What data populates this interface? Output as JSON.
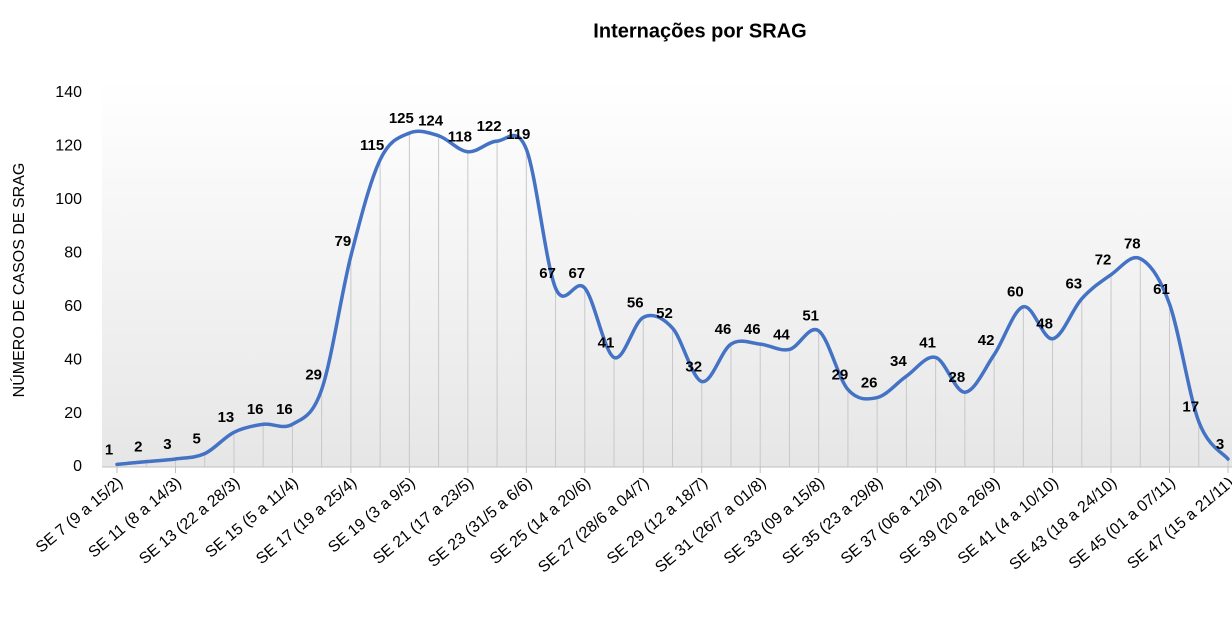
{
  "chart_data": {
    "type": "line",
    "title": "Internações por SRAG",
    "y_label": "NÚMERO DE CASOS DE SRAG",
    "categories": [
      "SE 7 (9 a 15/2)",
      null,
      "SE 11 (8 a 14/3)",
      null,
      "SE 13 (22 a 28/3)",
      null,
      "SE 15 (5 a 11/4)",
      null,
      "SE 17 (19 a 25/4)",
      null,
      "SE 19 (3 a 9/5)",
      null,
      "SE 21 (17 a 23/5)",
      null,
      "SE 23 (31/5 a 6/6)",
      null,
      "SE 25 (14 a 20/6)",
      null,
      "SE 27 (28/6 a 04/7)",
      null,
      "SE 29 (12 a 18/7)",
      null,
      "SE 31 (26/7 a 01/8)",
      null,
      "SE 33 (09 a 15/8)",
      null,
      "SE 35 (23 a 29/8)",
      null,
      "SE 37 (06 a 12/9)",
      null,
      "SE 39 (20 a 26/9)",
      null,
      "SE 41 (4 a 10/10)",
      null,
      "SE 43 (18 a 24/10)",
      null,
      "SE 45 (01 a 07/11)",
      null,
      "SE 47 (15 a 21/11)"
    ],
    "values": [
      1,
      2,
      3,
      5,
      13,
      16,
      16,
      29,
      79,
      115,
      125,
      124,
      118,
      122,
      119,
      67,
      67,
      41,
      56,
      52,
      32,
      46,
      46,
      44,
      51,
      29,
      26,
      34,
      41,
      28,
      42,
      60,
      48,
      63,
      72,
      78,
      61,
      17,
      3
    ],
    "color": "#4472c4",
    "ylim": [
      0,
      140
    ],
    "yticks": [
      0,
      20,
      40,
      60,
      80,
      100,
      120,
      140
    ]
  }
}
